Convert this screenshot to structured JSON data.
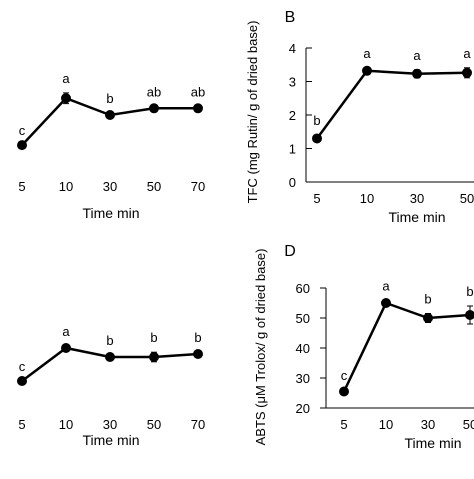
{
  "chart_data": [
    {
      "type": "line",
      "panel_label": "",
      "categories": [
        "5",
        "10",
        "30",
        "50",
        "70"
      ],
      "values": [
        0.55,
        1.25,
        1.0,
        1.1,
        1.1
      ],
      "errors": [
        0.0,
        0.08,
        0.03,
        0.03,
        0.03
      ],
      "letters": [
        "c",
        "a",
        "b",
        "ab",
        "ab"
      ],
      "xlabel": "Time min",
      "ylabel": "",
      "ylim": [
        0,
        2
      ]
    },
    {
      "type": "line",
      "panel_label": "B",
      "categories": [
        "5",
        "10",
        "30",
        "50"
      ],
      "values": [
        1.3,
        3.32,
        3.23,
        3.26
      ],
      "errors": [
        0.1,
        0.08,
        0.12,
        0.15
      ],
      "letters": [
        "b",
        "a",
        "a",
        "a"
      ],
      "yticks": [
        0,
        1,
        2,
        3,
        4
      ],
      "xlabel": "Time min",
      "ylabel": "TFC (mg Rutin/ g of dried base)",
      "ylim": [
        0,
        4
      ]
    },
    {
      "type": "line",
      "panel_label": "",
      "categories": [
        "5",
        "10",
        "30",
        "50",
        "70"
      ],
      "values": [
        0.45,
        1.0,
        0.85,
        0.85,
        0.9
      ],
      "errors": [
        0.0,
        0.03,
        0.03,
        0.08,
        0.03
      ],
      "letters": [
        "c",
        "a",
        "b",
        "b",
        "b"
      ],
      "xlabel": "Time min",
      "ylabel": "",
      "ylim": [
        0,
        2
      ]
    },
    {
      "type": "line",
      "panel_label": "D",
      "categories": [
        "5",
        "10",
        "30",
        "50"
      ],
      "values": [
        25.5,
        55.0,
        50.0,
        51.0
      ],
      "errors": [
        0.5,
        0.8,
        1.5,
        3.0
      ],
      "letters": [
        "c",
        "a",
        "b",
        "b"
      ],
      "yticks": [
        20,
        30,
        40,
        50,
        60
      ],
      "xlabel": "Time min",
      "ylabel": "ABTS (μM Trolox/ g of dried base)",
      "ylim": [
        20,
        60
      ]
    }
  ]
}
